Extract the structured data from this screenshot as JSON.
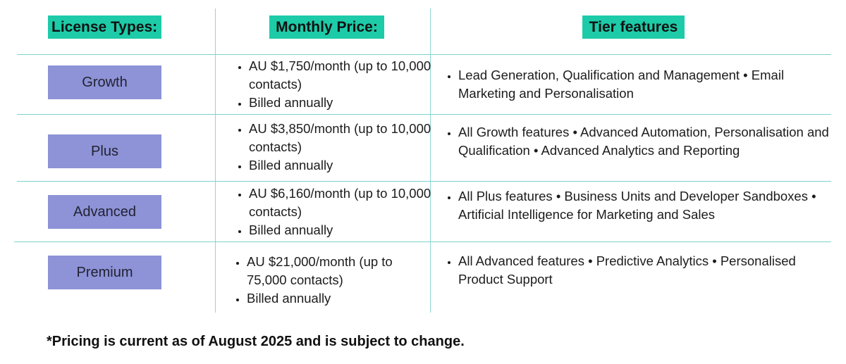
{
  "headers": {
    "license_types": "License Types:",
    "monthly_price": "Monthly Price:",
    "tier_features": "Tier features"
  },
  "rows": [
    {
      "tier": "Growth",
      "price": "AU $1,750/month (up to 10,000 contacts)",
      "billing": "Billed annually",
      "features": "Lead Generation, Qualification and Management • Email Marketing and Personalisation"
    },
    {
      "tier": "Plus",
      "price": "AU $3,850/month (up to 10,000 contacts)",
      "billing": "Billed annually",
      "features": "All Growth features • Advanced Automation, Personalisation and Qualification • Advanced Analytics and Reporting"
    },
    {
      "tier": "Advanced",
      "price": "AU $6,160/month (up to 10,000 contacts)",
      "billing": "Billed annually",
      "features": "All Plus features • Business Units and Developer Sandboxes • Artificial Intelligence for Marketing and Sales"
    },
    {
      "tier": "Premium",
      "price": "AU $21,000/month (up to 75,000 contacts)",
      "billing": "Billed annually",
      "features": "All Advanced features • Predictive Analytics • Personalised Product Support"
    }
  ],
  "footnote": "*Pricing is current as of August 2025 and is subject to change.",
  "colors": {
    "header_bg": "#1dcba8",
    "tier_bg": "#8d93d6",
    "divider": "#7ed2cc"
  }
}
